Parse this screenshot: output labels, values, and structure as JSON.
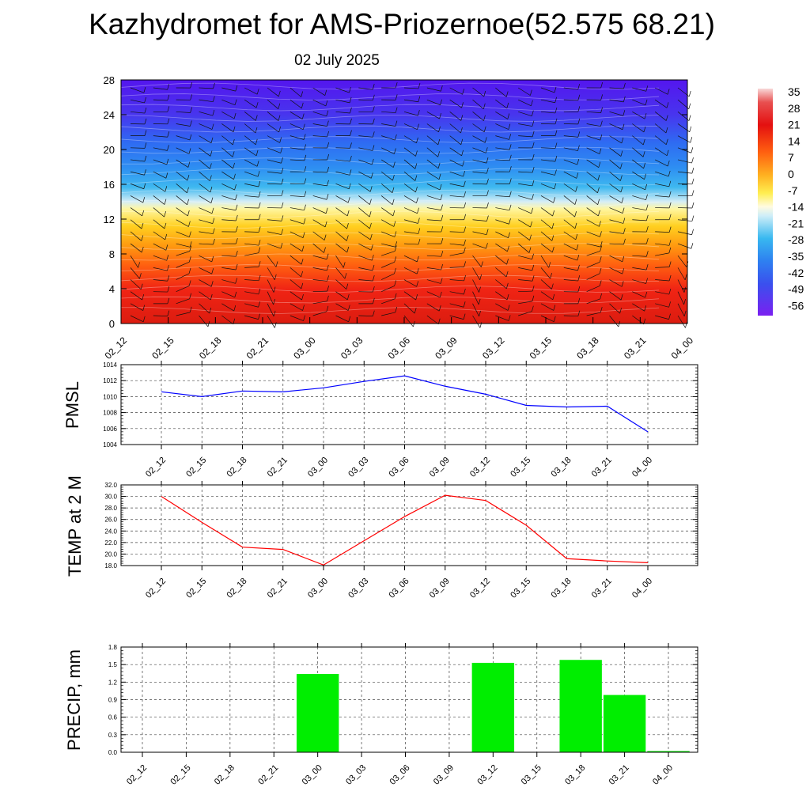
{
  "title": "Kazhydromet for AMS-Priozernoe(52.575 68.21)",
  "subtitle": "02 July 2025",
  "time_labels": [
    "02_12",
    "02_15",
    "02_18",
    "02_21",
    "03_00",
    "03_03",
    "03_06",
    "03_09",
    "03_12",
    "03_15",
    "03_18",
    "03_21",
    "04_00"
  ],
  "chart_data": [
    {
      "type": "heatmap",
      "name": "temperature-wind cross section",
      "x": [
        "02_12",
        "02_15",
        "02_18",
        "02_21",
        "03_00",
        "03_03",
        "03_06",
        "03_09",
        "03_12",
        "03_15",
        "03_18",
        "03_21",
        "04_00"
      ],
      "y_ticks": [
        0,
        4,
        8,
        12,
        16,
        20,
        24,
        28
      ],
      "ylim": [
        0,
        28
      ],
      "colorbar_labels": [
        "35",
        "28",
        "21",
        "14",
        "7",
        "0",
        "-7",
        "-14",
        "-21",
        "-28",
        "-35",
        "-42",
        "-49",
        "-56"
      ],
      "colors": {
        "top": "#5516ec",
        "blue": "#2f6cf0",
        "cyan": "#38b2ee",
        "light": "#d8f1f8",
        "yellow": "#ffe840",
        "orange": "#ff8c10",
        "red": "#f02010",
        "darkred": "#d81a10"
      },
      "overlay": "wind barbs"
    },
    {
      "type": "line",
      "ylabel": "PMSL",
      "x": [
        "02_12",
        "02_15",
        "02_18",
        "02_21",
        "03_00",
        "03_03",
        "03_06",
        "03_09",
        "03_12",
        "03_15",
        "03_18",
        "03_21",
        "04_00"
      ],
      "values": [
        1010.6,
        1010.0,
        1010.7,
        1010.6,
        1011.1,
        1011.9,
        1012.6,
        1011.3,
        1010.3,
        1008.9,
        1008.7,
        1008.8,
        1005.6
      ],
      "ylim": [
        1004,
        1014
      ],
      "yticks": [
        "1004",
        "1006",
        "1008",
        "1010",
        "1012",
        "1014"
      ],
      "color": "#0000ff",
      "grid": true
    },
    {
      "type": "line",
      "ylabel": "TEMP at 2 M",
      "x": [
        "02_12",
        "02_15",
        "02_18",
        "02_21",
        "03_00",
        "03_03",
        "03_06",
        "03_09",
        "03_12",
        "03_15",
        "03_18",
        "03_21",
        "04_00"
      ],
      "values": [
        30.0,
        25.5,
        21.2,
        20.8,
        18.1,
        22.3,
        26.5,
        30.2,
        29.3,
        25.0,
        19.2,
        18.8,
        18.5
      ],
      "ylim": [
        18,
        32
      ],
      "yticks": [
        "18.0",
        "20.0",
        "22.0",
        "24.0",
        "26.0",
        "28.0",
        "30.0",
        "32.0"
      ],
      "color": "#ff0000",
      "grid": true
    },
    {
      "type": "bar",
      "ylabel": "PRECIP, mm",
      "categories": [
        "02_12",
        "02_15",
        "02_18",
        "02_21",
        "03_00",
        "03_03",
        "03_06",
        "03_09",
        "03_12",
        "03_15",
        "03_18",
        "03_21",
        "04_00"
      ],
      "values": [
        0,
        0,
        0,
        0,
        1.34,
        0,
        0,
        0,
        1.53,
        0,
        1.58,
        0.98,
        0.02
      ],
      "ylim": [
        0,
        1.8
      ],
      "yticks": [
        "0.0",
        "0.3",
        "0.6",
        "0.9",
        "1.2",
        "1.5",
        "1.8"
      ],
      "color": "#00ee00",
      "grid": true
    }
  ]
}
